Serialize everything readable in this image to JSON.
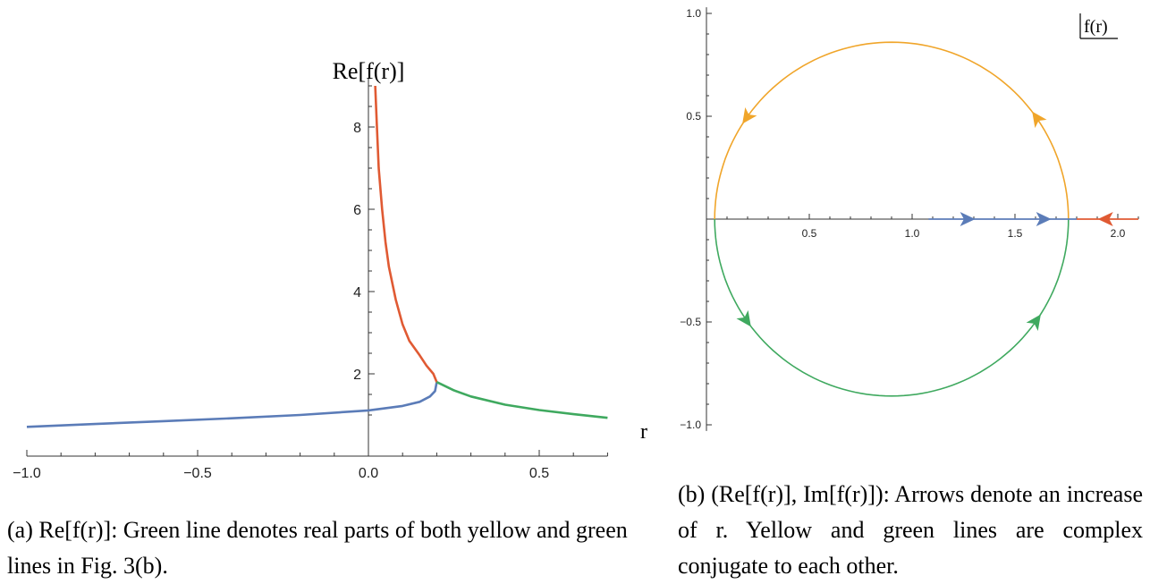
{
  "colors": {
    "blue": "#5b7cb8",
    "red": "#e05a33",
    "green": "#3fa95f",
    "yellow": "#f0a52a",
    "darkred": "#a6322c"
  },
  "panel_a": {
    "ylabel": "Re[f(r)]",
    "xlabel": "r",
    "caption": "(a) Re[f(r)]: Green line denotes real parts of both yellow and green lines in Fig. 3(b)."
  },
  "panel_b": {
    "legend": "f(r)",
    "caption": "(b) (Re[f(r)], Im[f(r)]): Arrows denote an increase of r. Yellow and green lines are complex conjugate to each other."
  },
  "chart_data": [
    {
      "type": "line",
      "xlabel": "r",
      "ylabel": "Re[f(r)]",
      "xlim": [
        -1.0,
        0.7
      ],
      "ylim": [
        0.5,
        9.0
      ],
      "xticks": [
        -1.0,
        -0.5,
        0.0,
        0.5
      ],
      "xtick_labels": [
        "−1.0",
        "−0.5",
        "0.0",
        "0.5"
      ],
      "yticks": [
        2,
        4,
        6,
        8
      ],
      "ytick_labels": [
        "2",
        "4",
        "6",
        "8"
      ],
      "series": [
        {
          "color": "blue",
          "points": [
            [
              -1.0,
              0.71
            ],
            [
              -0.8,
              0.78
            ],
            [
              -0.6,
              0.85
            ],
            [
              -0.4,
              0.92
            ],
            [
              -0.2,
              1.0
            ],
            [
              0.0,
              1.11
            ],
            [
              0.1,
              1.22
            ],
            [
              0.15,
              1.32
            ],
            [
              0.18,
              1.45
            ],
            [
              0.195,
              1.58
            ],
            [
              0.2,
              1.8
            ]
          ]
        },
        {
          "color": "red",
          "points": [
            [
              0.2,
              1.8
            ],
            [
              0.19,
              2.0
            ],
            [
              0.17,
              2.2
            ],
            [
              0.15,
              2.45
            ],
            [
              0.12,
              2.8
            ],
            [
              0.1,
              3.2
            ],
            [
              0.08,
              3.8
            ],
            [
              0.06,
              4.6
            ],
            [
              0.05,
              5.2
            ],
            [
              0.04,
              6.0
            ],
            [
              0.03,
              7.0
            ],
            [
              0.025,
              8.0
            ],
            [
              0.02,
              9.0
            ]
          ]
        },
        {
          "color": "green",
          "points": [
            [
              0.2,
              1.8
            ],
            [
              0.25,
              1.6
            ],
            [
              0.3,
              1.45
            ],
            [
              0.4,
              1.25
            ],
            [
              0.5,
              1.12
            ],
            [
              0.6,
              1.02
            ],
            [
              0.7,
              0.93
            ]
          ]
        }
      ]
    },
    {
      "type": "line",
      "xlim": [
        0.0,
        2.1
      ],
      "ylim": [
        -1.05,
        1.05
      ],
      "xticks": [
        0.5,
        1.0,
        1.5,
        2.0
      ],
      "xtick_labels": [
        "0.5",
        "1.0",
        "1.5",
        "2.0"
      ],
      "yticks": [
        1.0,
        0.5,
        -0.5,
        -1.0
      ],
      "ytick_labels": [
        "1.0",
        "0.5",
        "−0.5",
        "−1.0"
      ],
      "series": [
        {
          "color": "yellow",
          "description": "upper semicircle, center 0.9, radius 0.86",
          "center": 0.9,
          "radius": 0.86,
          "sign": 1
        },
        {
          "color": "green",
          "description": "lower semicircle, center 0.9, radius 0.86",
          "center": 0.9,
          "radius": 0.86,
          "sign": -1
        },
        {
          "color": "blue",
          "points": [
            [
              1.08,
              0.0
            ],
            [
              1.8,
              0.0
            ]
          ]
        },
        {
          "color": "red",
          "points": [
            [
              1.8,
              0.0
            ],
            [
              2.1,
              0.0
            ]
          ]
        }
      ],
      "arrows": [
        {
          "color": "yellow",
          "angle_deg": 35,
          "direction": "ccw"
        },
        {
          "color": "yellow",
          "angle_deg": 145,
          "direction": "ccw"
        },
        {
          "color": "green",
          "angle_deg": 215,
          "direction": "ccw"
        },
        {
          "color": "green",
          "angle_deg": 325,
          "direction": "ccw"
        },
        {
          "color": "blue",
          "x": 1.27,
          "direction": "right"
        },
        {
          "color": "blue",
          "x": 1.64,
          "direction": "right"
        },
        {
          "color": "red",
          "x": 1.94,
          "direction": "left"
        }
      ]
    }
  ]
}
